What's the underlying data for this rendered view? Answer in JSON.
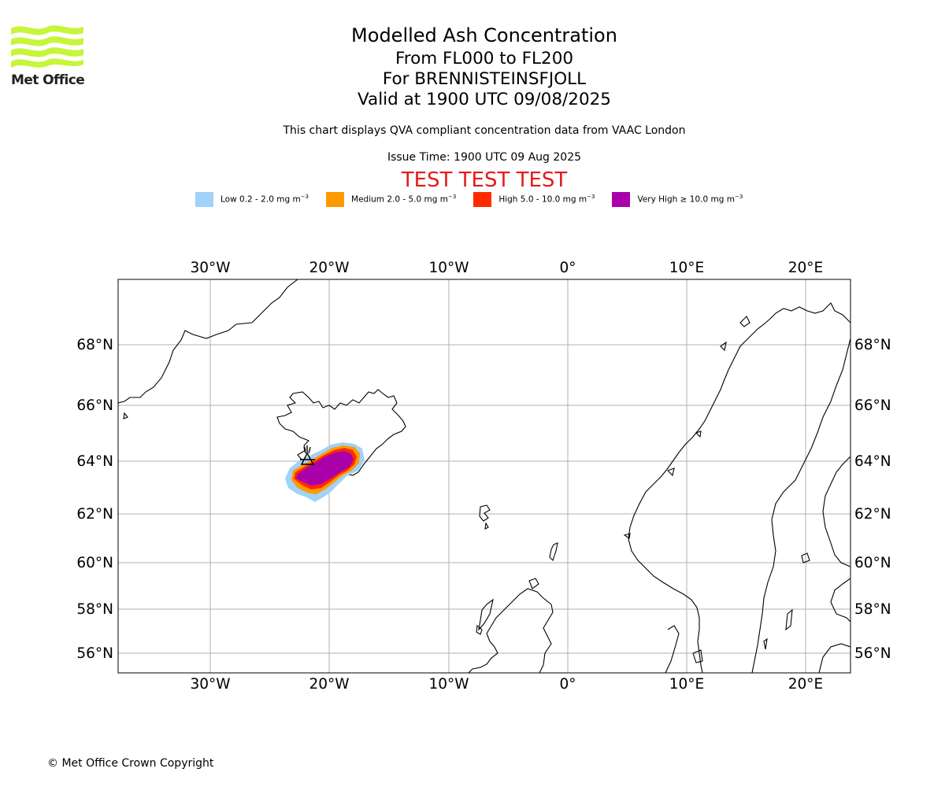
{
  "branding": {
    "logo_text": "Met Office",
    "logo_color": "#c7f53a"
  },
  "header": {
    "title": "Modelled Ash Concentration",
    "flight_levels": "From FL000 to FL200",
    "volcano": "For BRENNISTEINSFJOLL",
    "valid_time": "Valid at 1900 UTC 09/08/2025",
    "description": "This chart displays QVA compliant concentration data from VAAC London",
    "issue_time": "Issue Time: 1900 UTC 09 Aug 2025",
    "test_banner": "TEST TEST TEST"
  },
  "legend": [
    {
      "label": "Low 0.2 - 2.0 mg m",
      "sup": "−3",
      "color": "#a0d2fa"
    },
    {
      "label": "Medium 2.0 - 5.0 mg m",
      "sup": "−3",
      "color": "#ff9900"
    },
    {
      "label": "High 5.0 - 10.0 mg m",
      "sup": "−3",
      "color": "#ff2a00"
    },
    {
      "label": "Very High  ≥  10.0 mg m",
      "sup": "−3",
      "color": "#aa00aa"
    }
  ],
  "map": {
    "lon_labels": [
      "30°W",
      "20°W",
      "10°W",
      "0°",
      "10°E",
      "20°E"
    ],
    "lat_labels": [
      "68°N",
      "66°N",
      "64°N",
      "62°N",
      "60°N",
      "58°N",
      "56°N"
    ],
    "gridlines": true,
    "grid_color": "#b0b0b0"
  },
  "footer": {
    "copyright": "© Met Office Crown Copyright"
  }
}
